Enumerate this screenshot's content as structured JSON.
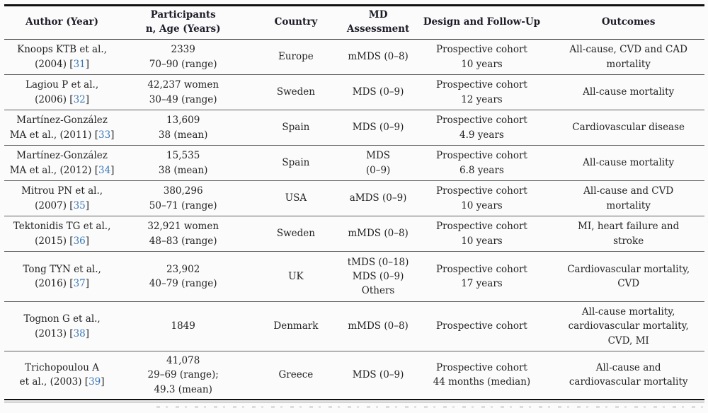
{
  "ui": {
    "bracket_open": "[",
    "bracket_close": "]",
    "link_color": "#3878b8",
    "text_color": "#232323",
    "header_text_color": "#1d1d28",
    "rule_color": "#101010"
  },
  "table": {
    "columns": [
      "Author (Year)",
      "Participants\nn, Age (Years)",
      "Country",
      "MD\nAssessment",
      "Design and Follow-Up",
      "Outcomes"
    ],
    "rows": [
      {
        "author": "Knoops KTB et al.,\n(2004) ",
        "cite": "31",
        "participants": "2339\n70–90 (range)",
        "country": "Europe",
        "md": "mMDS (0–8)",
        "design": "Prospective cohort\n10 years",
        "outcomes": "All-cause, CVD and CAD\nmortality"
      },
      {
        "author": "Lagiou P et al.,\n(2006) ",
        "cite": "32",
        "participants": "42,237 women\n30–49 (range)",
        "country": "Sweden",
        "md": "MDS (0–9)",
        "design": "Prospective cohort\n12 years",
        "outcomes": "All-cause mortality"
      },
      {
        "author": "Martínez-González\nMA et al., (2011) ",
        "cite": "33",
        "participants": "13,609\n38 (mean)",
        "country": "Spain",
        "md": "MDS (0–9)",
        "design": "Prospective cohort\n4.9 years",
        "outcomes": "Cardiovascular disease"
      },
      {
        "author": "Martínez-González\nMA et al., (2012) ",
        "cite": "34",
        "participants": "15,535\n38 (mean)",
        "country": "Spain",
        "md": "MDS\n(0–9)",
        "design": "Prospective cohort\n6.8 years",
        "outcomes": "All-cause mortality"
      },
      {
        "author": "Mitrou PN et al.,\n(2007) ",
        "cite": "35",
        "participants": "380,296\n50–71 (range)",
        "country": "USA",
        "md": "aMDS (0–9)",
        "design": "Prospective cohort\n10 years",
        "outcomes": "All-cause and CVD\nmortality"
      },
      {
        "author": "Tektonidis TG et al.,\n(2015) ",
        "cite": "36",
        "participants": "32,921 women\n48–83 (range)",
        "country": "Sweden",
        "md": "mMDS (0–8)",
        "design": "Prospective cohort\n10 years",
        "outcomes": "MI, heart failure and\nstroke"
      },
      {
        "author": "Tong TYN et al.,\n(2016) ",
        "cite": "37",
        "participants": "23,902\n40–79 (range)",
        "country": "UK",
        "md": "tMDS (0–18)\nMDS (0–9)\nOthers",
        "design": "Prospective cohort\n17 years",
        "outcomes": "Cardiovascular mortality,\nCVD"
      },
      {
        "author": "Tognon G et al.,\n(2013) ",
        "cite": "38",
        "participants": "1849",
        "country": "Denmark",
        "md": "mMDS (0–8)",
        "design": "Prospective cohort",
        "outcomes": "All-cause mortality,\ncardiovascular mortality,\nCVD, MI"
      },
      {
        "author": "Trichopoulou A\net al., (2003) ",
        "cite": "39",
        "participants": "41,078\n29–69 (range);\n49.3 (mean)",
        "country": "Greece",
        "md": "MDS (0–9)",
        "design": "Prospective cohort\n44 months (median)",
        "outcomes": "All-cause and\ncardiovascular mortality"
      }
    ]
  }
}
